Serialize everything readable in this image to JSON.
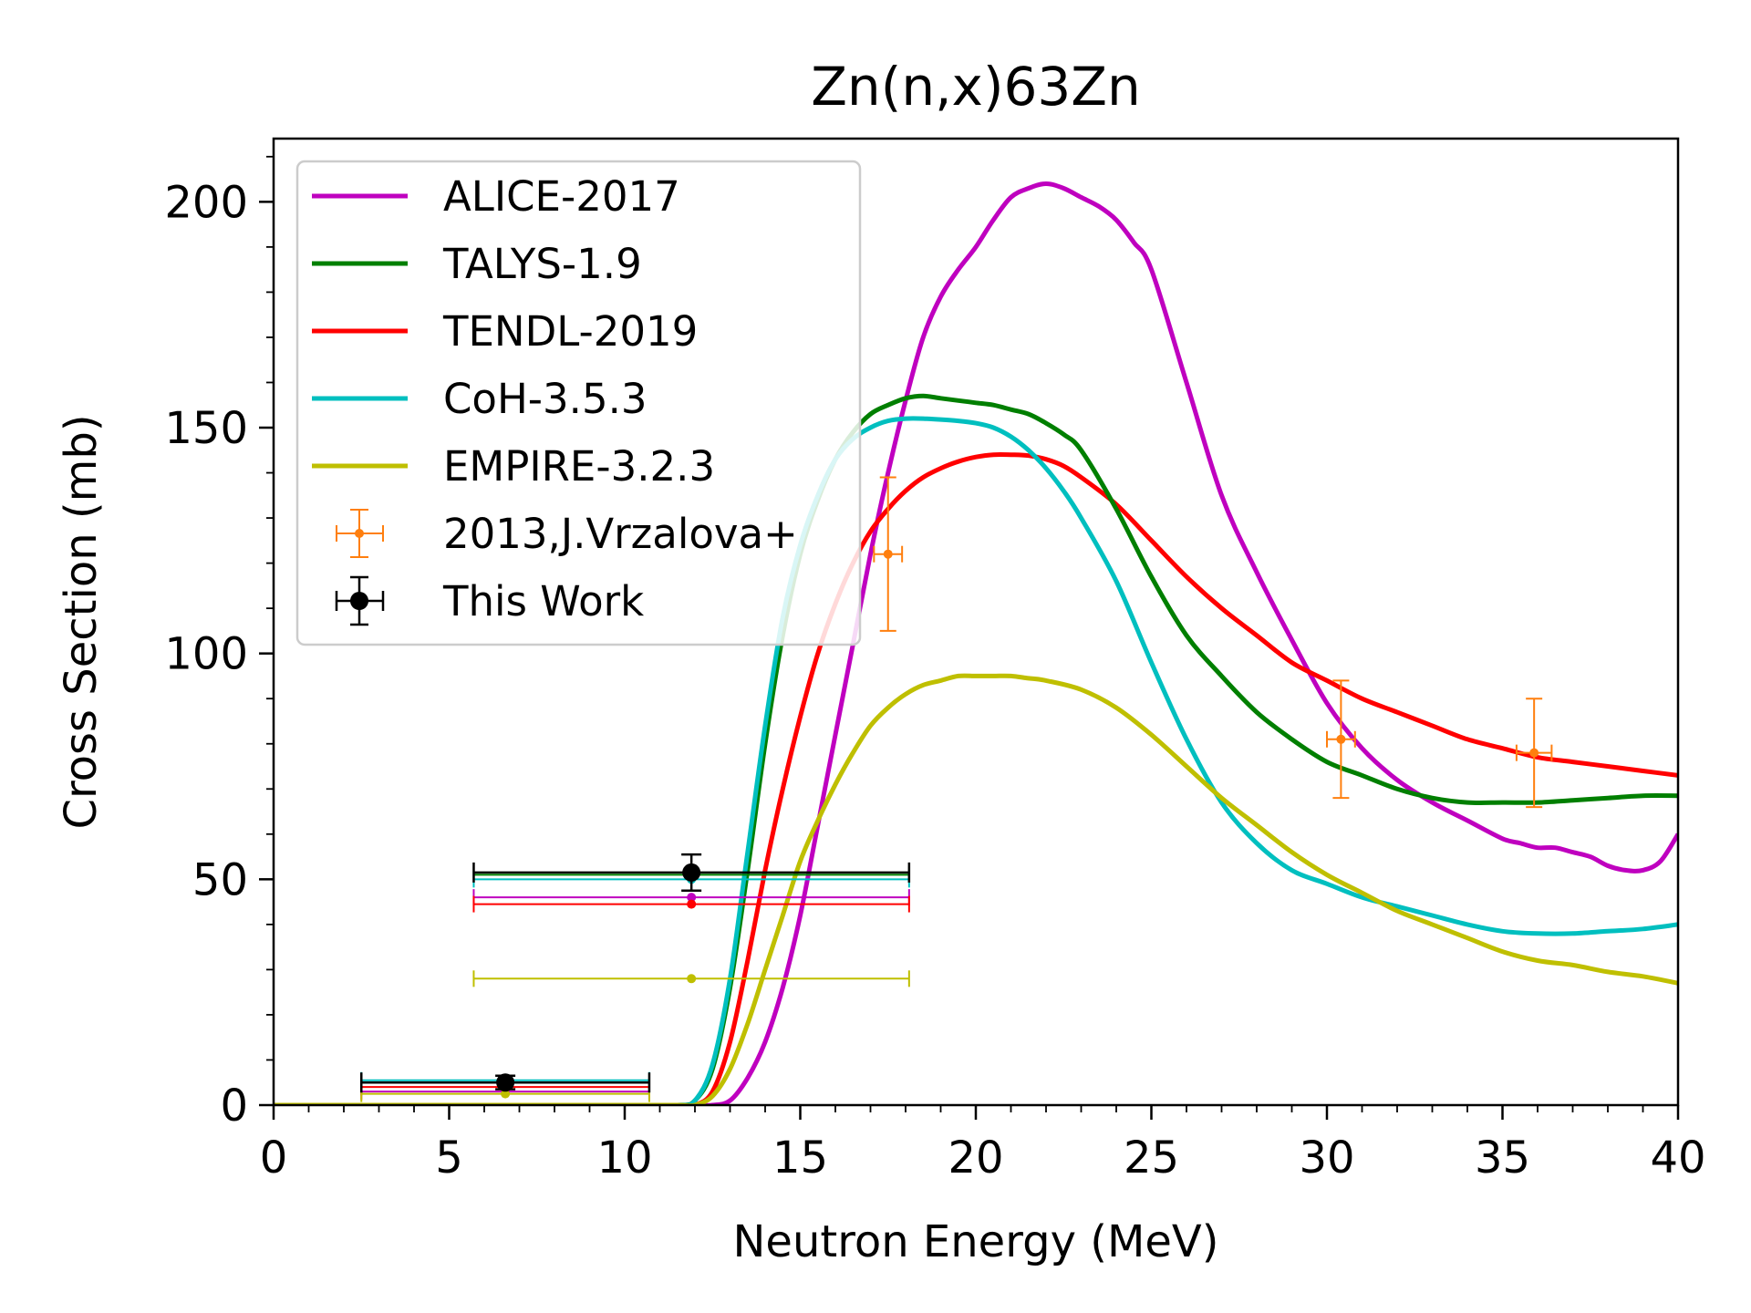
{
  "chart_data": {
    "type": "line",
    "title": "Zn(n,x)63Zn",
    "xlabel": "Neutron Energy (MeV)",
    "ylabel": "Cross Section (mb)",
    "xlim": [
      0,
      40
    ],
    "ylim": [
      0,
      214
    ],
    "x_ticks": [
      "0",
      "5",
      "10",
      "15",
      "20",
      "25",
      "30",
      "35",
      "40"
    ],
    "y_ticks": [
      "0",
      "50",
      "100",
      "150",
      "200"
    ],
    "grid": false,
    "legend_position": "top-left",
    "series": [
      {
        "name": "ALICE-2017",
        "color": "#bf00bf",
        "kind": "line",
        "x": [
          0,
          10,
          12,
          12.5,
          13,
          13.5,
          14,
          14.5,
          15,
          15.5,
          16,
          16.5,
          17,
          17.5,
          18,
          18.5,
          19,
          19.5,
          20,
          20.5,
          21,
          21.5,
          22,
          22.5,
          23,
          23.5,
          24,
          24.5,
          25,
          26,
          27,
          28,
          29,
          30,
          31,
          32,
          33,
          34,
          35,
          35.5,
          36,
          36.5,
          37,
          37.5,
          38,
          38.5,
          39,
          39.5,
          40
        ],
        "y": [
          0,
          0,
          0,
          0,
          1,
          6,
          14,
          26,
          42,
          62,
          82,
          102,
          122,
          140,
          156,
          170,
          179,
          185,
          190,
          196,
          201,
          203,
          204,
          203,
          201,
          199,
          196,
          191,
          185,
          160,
          135,
          118,
          103,
          89,
          79,
          72,
          67,
          63,
          59,
          58,
          57,
          57,
          56,
          55,
          53,
          52,
          52,
          54,
          60
        ]
      },
      {
        "name": "TALYS-1.9",
        "color": "#007f00",
        "kind": "line",
        "x": [
          0,
          10,
          11.5,
          12,
          12.5,
          13,
          13.5,
          14,
          14.5,
          15,
          15.5,
          16,
          16.5,
          17,
          17.5,
          18,
          18.5,
          19,
          19.5,
          20,
          20.5,
          21,
          21.5,
          22,
          22.5,
          23,
          24,
          25,
          26,
          27,
          28,
          29,
          30,
          31,
          32,
          33,
          34,
          35,
          36,
          37,
          38,
          39,
          40
        ],
        "y": [
          0,
          0,
          0,
          1,
          8,
          26,
          52,
          80,
          104,
          122,
          134,
          143,
          149,
          153,
          155,
          156.5,
          157,
          156.5,
          156,
          155.5,
          155,
          154,
          153,
          151,
          148.5,
          145,
          132,
          117,
          104,
          95,
          87,
          81,
          76,
          73,
          70,
          68,
          67,
          67,
          67,
          67.5,
          68,
          68.5,
          68.5
        ]
      },
      {
        "name": "TENDL-2019",
        "color": "#ff0000",
        "kind": "line",
        "x": [
          0,
          10,
          11.5,
          12,
          12.5,
          13,
          13.5,
          14,
          14.5,
          15,
          15.5,
          16,
          16.5,
          17,
          17.5,
          18,
          18.5,
          19,
          19.5,
          20,
          20.5,
          21,
          21.5,
          22,
          22.5,
          23,
          24,
          25,
          26,
          27,
          28,
          29,
          30,
          31,
          32,
          33,
          34,
          35,
          36,
          37,
          38,
          39,
          40
        ],
        "y": [
          0,
          0,
          0,
          0,
          3,
          14,
          32,
          52,
          70,
          86,
          100,
          111,
          120,
          127,
          132,
          136,
          139,
          141,
          142.5,
          143.5,
          144,
          144,
          143.8,
          143,
          141.5,
          139,
          133,
          125,
          117,
          110,
          104,
          98,
          94,
          90,
          87,
          84,
          81,
          79,
          77,
          76,
          75,
          74,
          73
        ]
      },
      {
        "name": "CoH-3.5.3",
        "color": "#00bfbf",
        "kind": "line",
        "x": [
          0,
          10,
          11.5,
          12,
          12.5,
          13,
          13.5,
          14,
          14.5,
          15,
          15.5,
          16,
          16.5,
          17,
          17.5,
          18,
          18.5,
          19,
          19.5,
          20,
          20.5,
          21,
          21.5,
          22,
          22.5,
          23,
          24,
          25,
          26,
          27,
          28,
          29,
          30,
          31,
          32,
          33,
          34,
          35,
          36,
          37,
          38,
          39,
          40
        ],
        "y": [
          0,
          0,
          0,
          1,
          9,
          28,
          56,
          84,
          108,
          124,
          135,
          143,
          147.5,
          150,
          151.5,
          152,
          152,
          151.8,
          151.5,
          151,
          150,
          148,
          145,
          141,
          136,
          130,
          116,
          98,
          81,
          67,
          58,
          52,
          49,
          46,
          44,
          42,
          40,
          38.5,
          38,
          38,
          38.5,
          39,
          40
        ]
      },
      {
        "name": "EMPIRE-3.2.3",
        "color": "#bfbf00",
        "kind": "line",
        "x": [
          0,
          10,
          11.5,
          12,
          12.5,
          13,
          13.5,
          14,
          14.5,
          15,
          15.5,
          16,
          16.5,
          17,
          17.5,
          18,
          18.5,
          19,
          19.5,
          20,
          20.5,
          21,
          21.5,
          22,
          23,
          24,
          25,
          26,
          27,
          28,
          29,
          30,
          31,
          32,
          33,
          34,
          35,
          36,
          37,
          38,
          39,
          40
        ],
        "y": [
          0,
          0,
          0,
          0,
          2,
          8,
          18,
          30,
          42,
          54,
          63,
          71,
          78,
          84,
          88,
          91,
          93,
          94,
          95,
          95,
          95,
          95,
          94.5,
          94,
          92,
          88,
          82,
          75,
          68,
          62,
          56,
          51,
          47,
          43,
          40,
          37,
          34,
          32,
          31,
          29.5,
          28.5,
          27
        ]
      },
      {
        "name": "2013,J.Vrzalova+",
        "color": "#ff7f0e",
        "kind": "points",
        "points": [
          {
            "x": 17.5,
            "y": 122,
            "xerr": 0.4,
            "yerr": 17
          },
          {
            "x": 30.4,
            "y": 81,
            "xerr": 0.4,
            "yerr": 13
          },
          {
            "x": 35.9,
            "y": 78,
            "xerr": 0.5,
            "yerr": 12
          }
        ]
      },
      {
        "name": "This Work",
        "color": "#000000",
        "kind": "points",
        "points": [
          {
            "x": 6.6,
            "y": 5,
            "xerr": 4.1,
            "yerr": 1.5
          },
          {
            "x": 11.9,
            "y": 51.5,
            "xerr": 6.2,
            "yerr": 4
          }
        ]
      }
    ],
    "averaged_model_points": [
      {
        "series": "ALICE-2017",
        "color": "#bf00bf",
        "x": 11.9,
        "y": 46,
        "xerr": 6.2
      },
      {
        "series": "TENDL-2019",
        "color": "#ff0000",
        "x": 11.9,
        "y": 44.5,
        "xerr": 6.2
      },
      {
        "series": "TALYS-1.9",
        "color": "#007f00",
        "x": 11.9,
        "y": 51,
        "xerr": 6.2
      },
      {
        "series": "CoH-3.5.3",
        "color": "#00bfbf",
        "x": 11.9,
        "y": 50,
        "xerr": 6.2
      },
      {
        "series": "EMPIRE-3.2.3",
        "color": "#bfbf00",
        "x": 11.9,
        "y": 28,
        "xerr": 6.2
      },
      {
        "series": "ALICE-2017",
        "color": "#bf00bf",
        "x": 6.6,
        "y": 3,
        "xerr": 4.1
      },
      {
        "series": "TENDL-2019",
        "color": "#ff0000",
        "x": 6.6,
        "y": 4,
        "xerr": 4.1
      },
      {
        "series": "TALYS-1.9",
        "color": "#007f00",
        "x": 6.6,
        "y": 5,
        "xerr": 4.1
      },
      {
        "series": "CoH-3.5.3",
        "color": "#00bfbf",
        "x": 6.6,
        "y": 5.5,
        "xerr": 4.1
      },
      {
        "series": "EMPIRE-3.2.3",
        "color": "#bfbf00",
        "x": 6.6,
        "y": 2.5,
        "xerr": 4.1
      }
    ]
  }
}
